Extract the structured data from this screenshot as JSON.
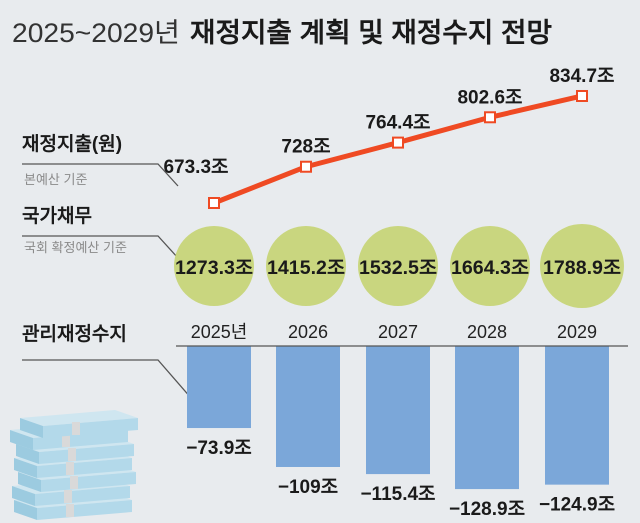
{
  "title": {
    "prefix": "2025~2029년",
    "main": "재정지출 계획 및 재정수지 전망"
  },
  "colors": {
    "background": "#e8ebee",
    "line": "#ef4a23",
    "circle": "#c9d67f",
    "bar": "#7ba7d9",
    "text": "#1a1a1a",
    "subtext": "#8a8a8a"
  },
  "chart_data": [
    {
      "type": "line",
      "label": "재정지출(원)",
      "sublabel": "본예산 기준",
      "categories": [
        "2025",
        "2026",
        "2027",
        "2028",
        "2029"
      ],
      "values": [
        673.3,
        728,
        764.4,
        802.6,
        834.7
      ],
      "data_labels": [
        "673.3조",
        "728조",
        "764.4조",
        "802.6조",
        "834.7조"
      ],
      "unit": "조"
    },
    {
      "type": "bubble",
      "label": "국가채무",
      "sublabel": "국회 확정예산 기준",
      "categories": [
        "2025",
        "2026",
        "2027",
        "2028",
        "2029"
      ],
      "values": [
        1273.3,
        1415.2,
        1532.5,
        1664.3,
        1788.9
      ],
      "data_labels": [
        "1273.3조",
        "1415.2조",
        "1532.5조",
        "1664.3조",
        "1788.9조"
      ],
      "unit": "조"
    },
    {
      "type": "bar",
      "label": "관리재정수지",
      "categories": [
        "2025년",
        "2026",
        "2027",
        "2028",
        "2029"
      ],
      "values": [
        -73.9,
        -109,
        -115.4,
        -128.9,
        -124.9
      ],
      "data_labels": [
        "−73.9조",
        "−109조",
        "−115.4조",
        "−128.9조",
        "−124.9조"
      ],
      "unit": "조"
    }
  ],
  "illustration": "money-stack-icon"
}
